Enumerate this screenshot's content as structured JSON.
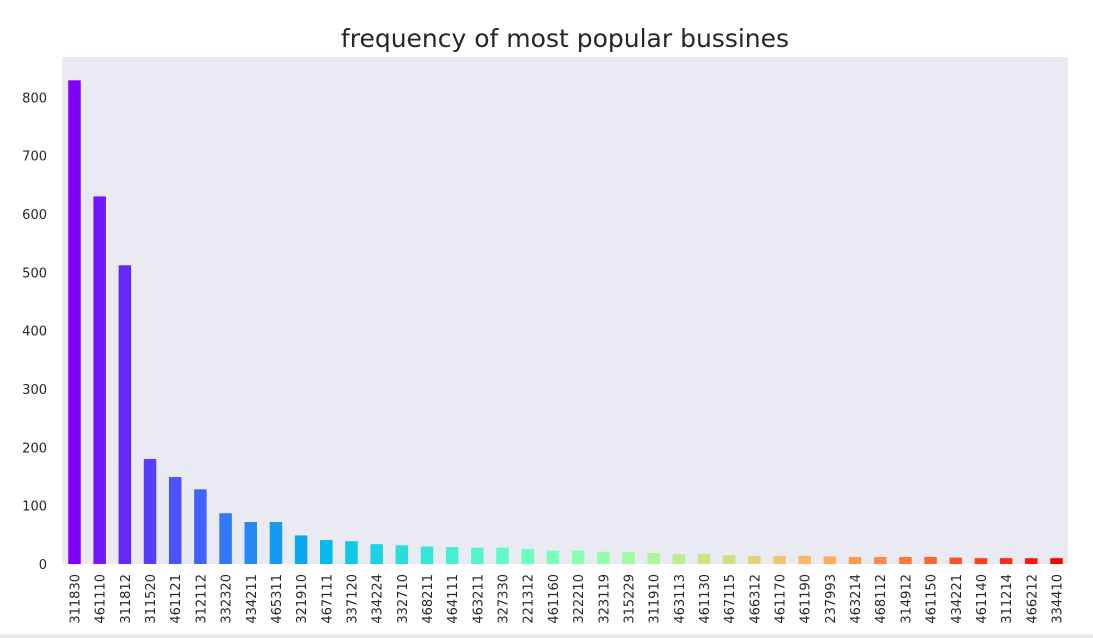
{
  "chart_data": {
    "type": "bar",
    "title": "frequency of most popular bussines",
    "xlabel": "",
    "ylabel": "",
    "ylim": [
      0,
      880
    ],
    "yticks": [
      0,
      100,
      200,
      300,
      400,
      500,
      600,
      700,
      800
    ],
    "grid": false,
    "legend": "none",
    "background": "#eaeaf2",
    "colormap": "rainbow",
    "categories": [
      "311830",
      "461110",
      "311812",
      "311520",
      "461121",
      "312112",
      "332320",
      "434211",
      "465311",
      "321910",
      "467111",
      "337120",
      "434224",
      "332710",
      "468211",
      "464111",
      "463211",
      "327330",
      "221312",
      "461160",
      "322210",
      "323119",
      "315229",
      "311910",
      "463113",
      "461130",
      "467115",
      "466312",
      "461170",
      "461190",
      "237993",
      "463214",
      "468112",
      "314912",
      "461150",
      "434221",
      "461140",
      "311214",
      "466212",
      "334410"
    ],
    "values": [
      829,
      630,
      512,
      180,
      149,
      128,
      87,
      72,
      72,
      49,
      41,
      39,
      34,
      32,
      30,
      29,
      28,
      28,
      26,
      23,
      23,
      21,
      21,
      19,
      17,
      17,
      15,
      14,
      14,
      14,
      13,
      12,
      12,
      12,
      12,
      11,
      10,
      10,
      10,
      10
    ]
  }
}
